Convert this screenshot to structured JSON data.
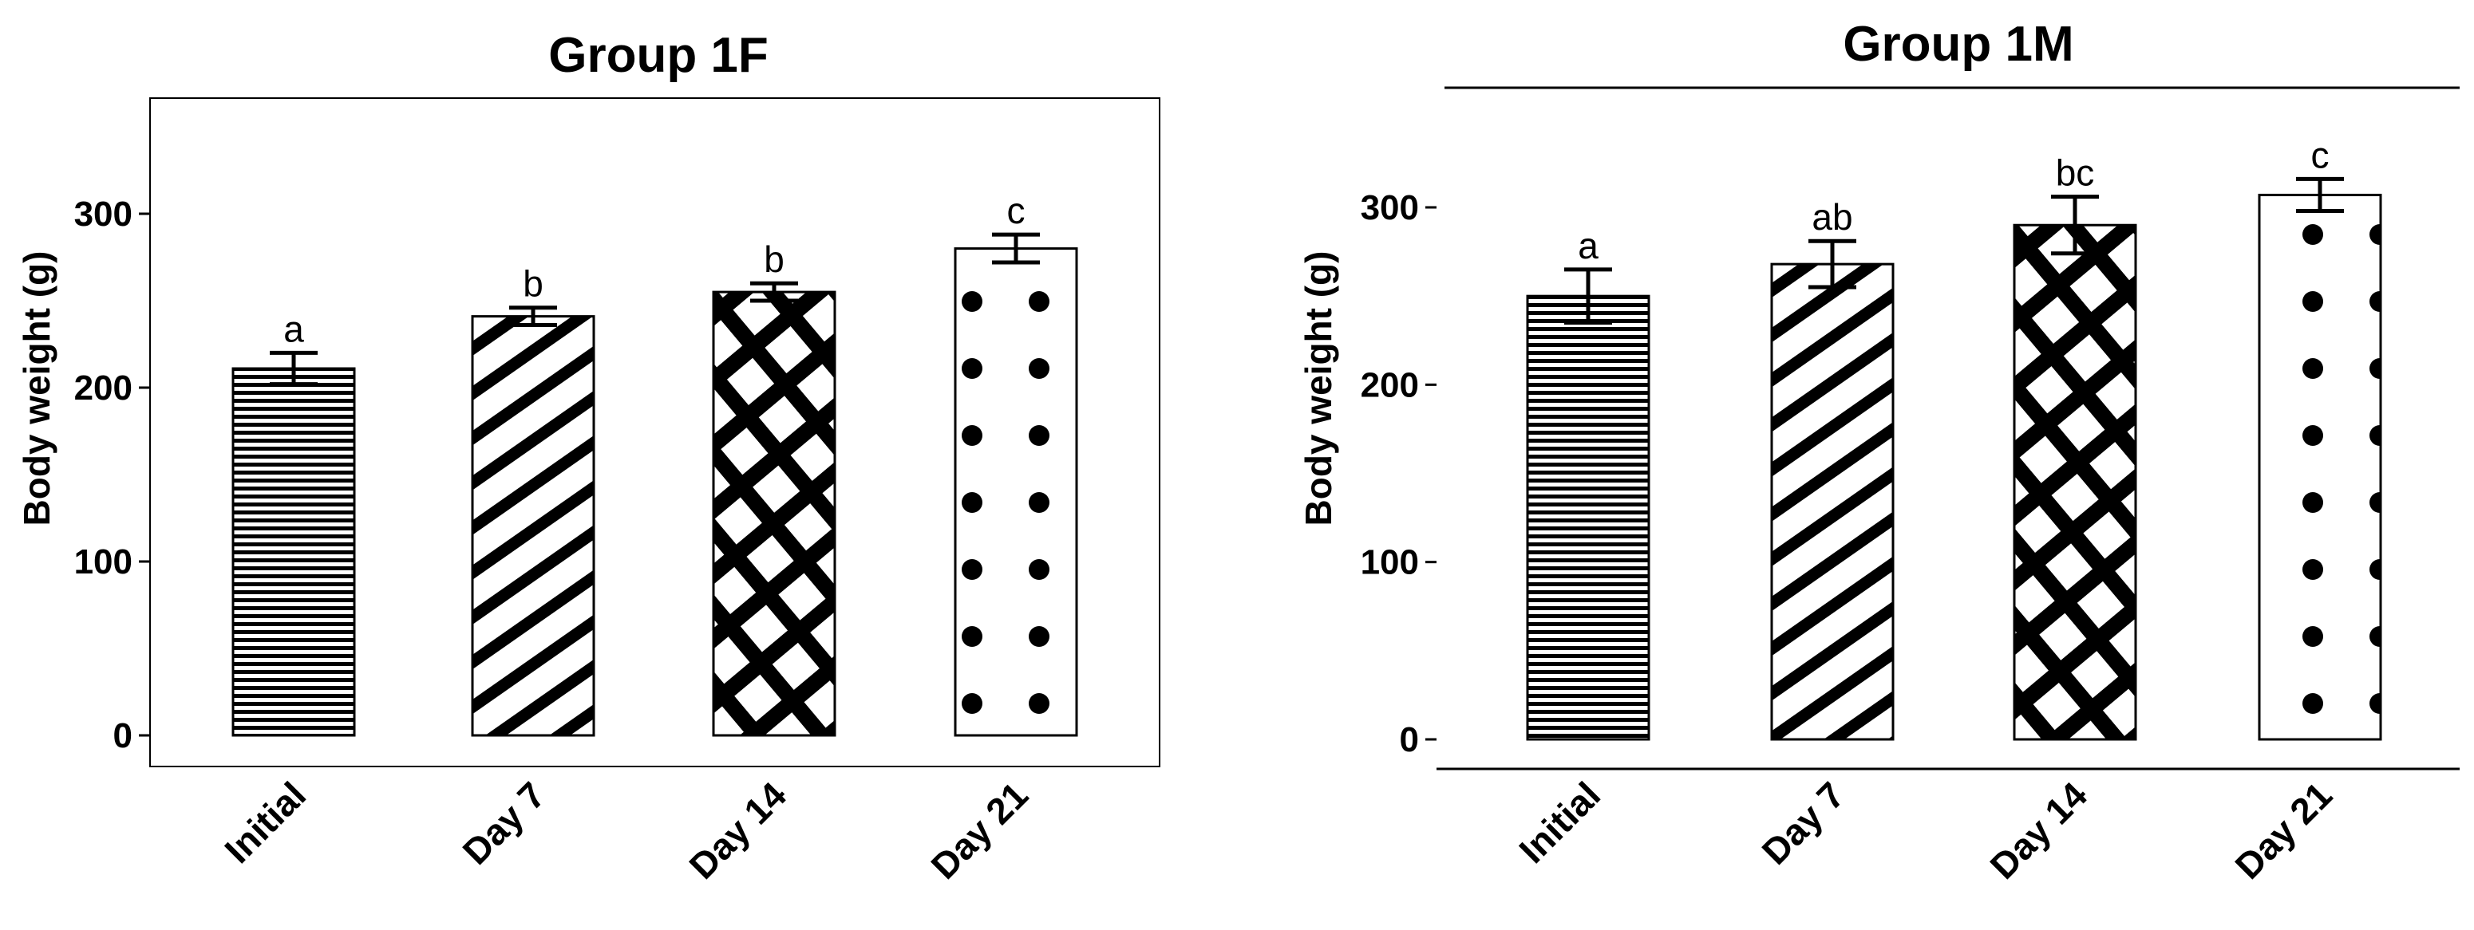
{
  "chart_data": [
    {
      "type": "bar",
      "title": "Group 1F",
      "xlabel": "",
      "ylabel": "Body weight (g)",
      "ylim": [
        0,
        360
      ],
      "yticks": [
        0,
        100,
        200,
        300
      ],
      "categories": [
        "Initial",
        "Day 7",
        "Day 14",
        "Day 21"
      ],
      "values": [
        211,
        241,
        255,
        280
      ],
      "errors": [
        9,
        5,
        5,
        8
      ],
      "significance_letters": [
        "a",
        "b",
        "b",
        "c"
      ],
      "bar_patterns": [
        "horizontal-lines",
        "diagonal-stripes",
        "crosshatch",
        "dots"
      ],
      "panel_border": true
    },
    {
      "type": "bar",
      "title": "Group 1M",
      "xlabel": "",
      "ylabel": "Body weight (g)",
      "ylim": [
        0,
        370
      ],
      "yticks": [
        0,
        100,
        200,
        300
      ],
      "categories": [
        "Initial",
        "Day 7",
        "Day 14",
        "Day 21"
      ],
      "values": [
        250,
        268,
        290,
        307
      ],
      "errors": [
        15,
        13,
        16,
        9
      ],
      "significance_letters": [
        "a",
        "ab",
        "bc",
        "c"
      ],
      "bar_patterns": [
        "horizontal-lines",
        "diagonal-stripes",
        "crosshatch",
        "dots"
      ],
      "panel_border": false
    }
  ]
}
